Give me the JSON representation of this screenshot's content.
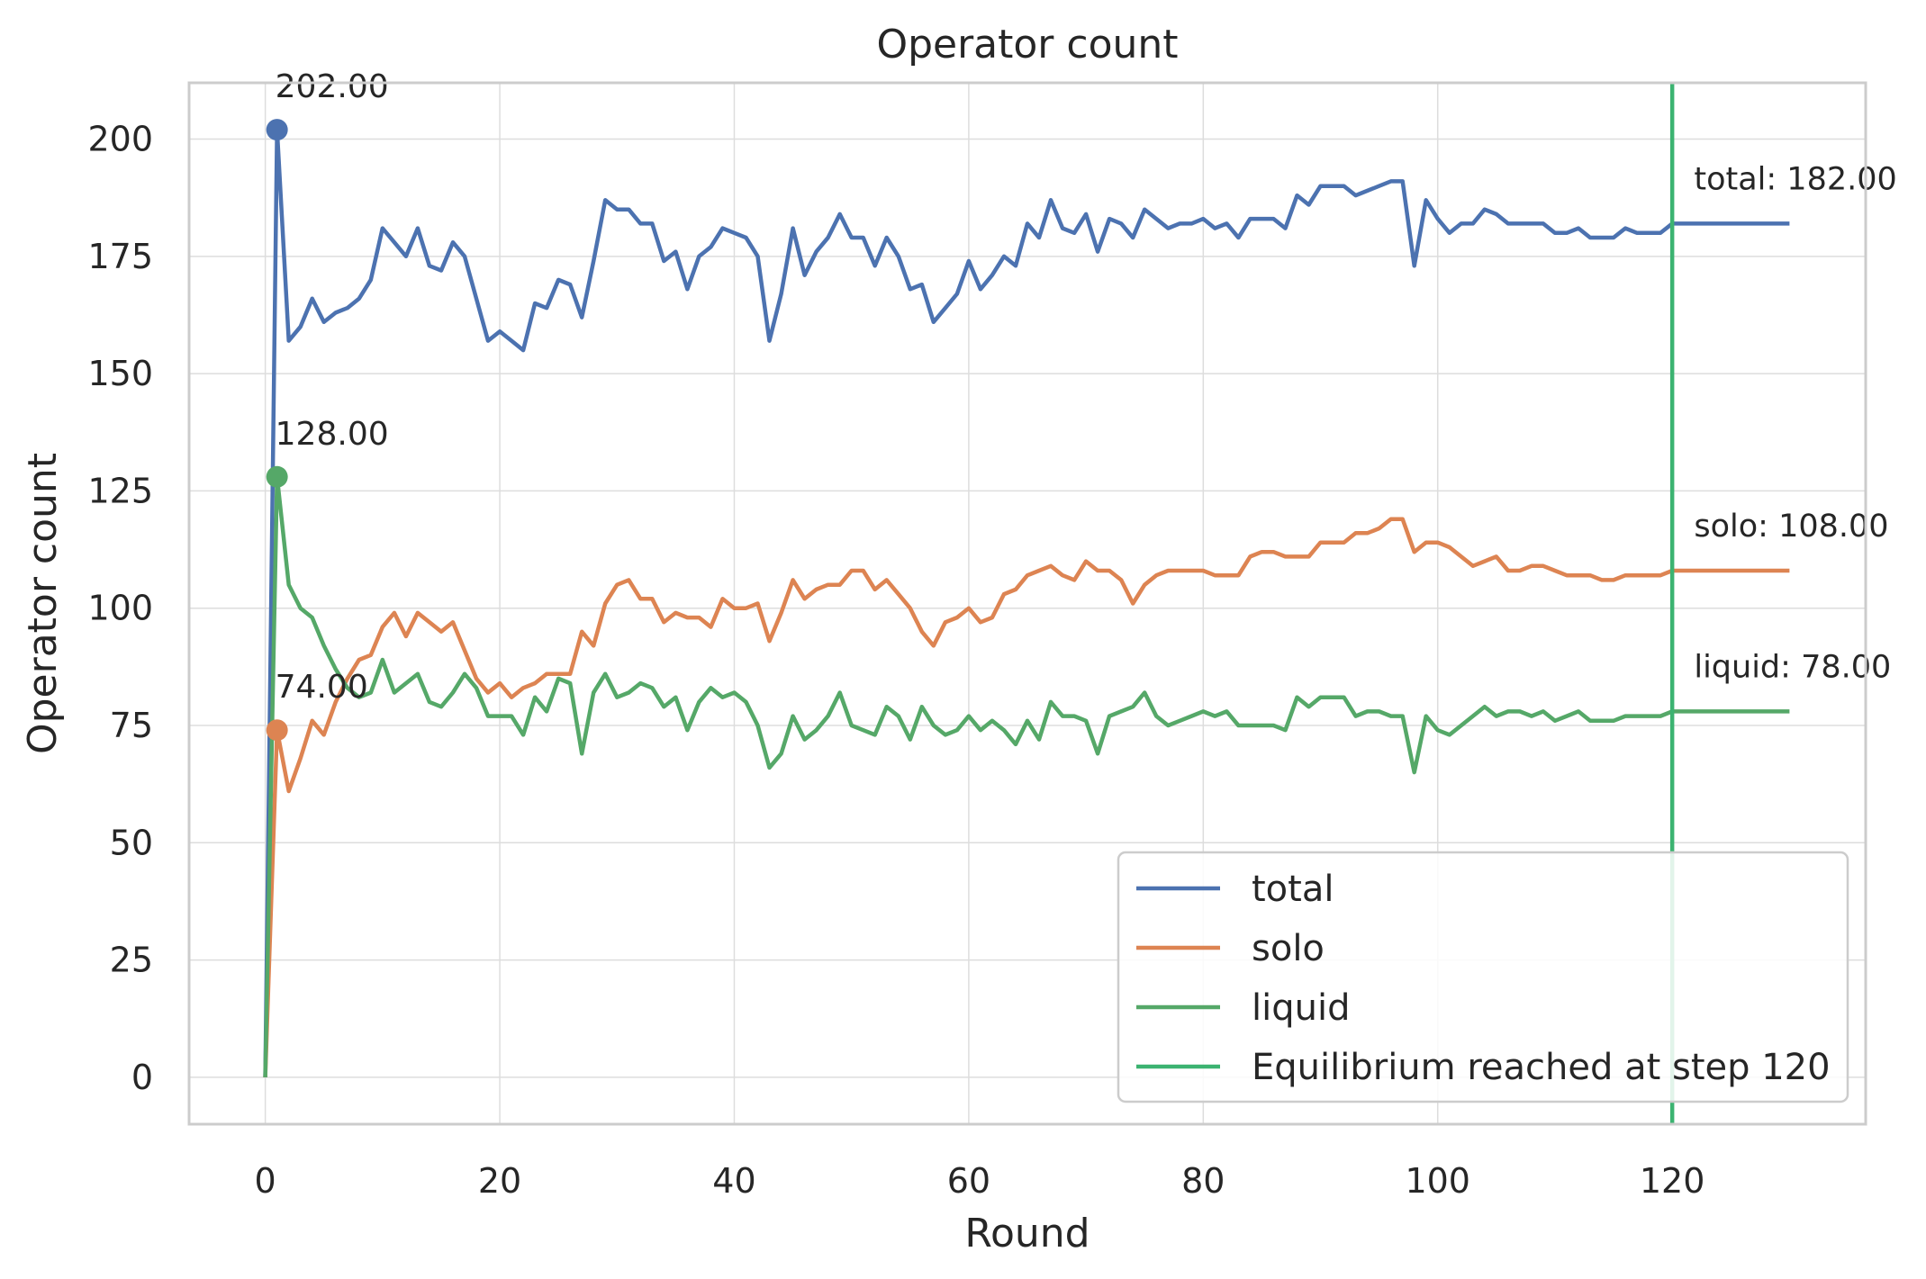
{
  "chart_data": {
    "type": "line",
    "title": "Operator count",
    "xlabel": "Round",
    "ylabel": "Operator count",
    "xlim": [
      -6.5,
      136.5
    ],
    "ylim": [
      -10,
      212
    ],
    "xticks": [
      0,
      20,
      40,
      60,
      80,
      100,
      120
    ],
    "yticks": [
      0,
      25,
      50,
      75,
      100,
      125,
      150,
      175,
      200
    ],
    "grid": true,
    "legend_position": "lower-right",
    "series": [
      {
        "name": "total",
        "color": "#4c72b0",
        "values": [
          0,
          202,
          157,
          160,
          166,
          161,
          163,
          164,
          166,
          170,
          181,
          178,
          175,
          181,
          173,
          172,
          178,
          175,
          166,
          157,
          159,
          157,
          155,
          165,
          164,
          170,
          169,
          162,
          174,
          187,
          185,
          185,
          182,
          182,
          174,
          176,
          168,
          175,
          177,
          181,
          180,
          179,
          175,
          157,
          167,
          181,
          171,
          176,
          179,
          184,
          179,
          179,
          173,
          179,
          175,
          168,
          169,
          161,
          164,
          167,
          174,
          168,
          171,
          175,
          173,
          182,
          179,
          187,
          181,
          180,
          184,
          176,
          183,
          182,
          179,
          185,
          183,
          181,
          182,
          182,
          183,
          181,
          182,
          179,
          183,
          183,
          183,
          181,
          188,
          186,
          190,
          190,
          190,
          188,
          189,
          190,
          191,
          191,
          173,
          187,
          183,
          180,
          182,
          182,
          185,
          184,
          182,
          182,
          182,
          182,
          180,
          180,
          181,
          179,
          179,
          179,
          181,
          180,
          180,
          180,
          182,
          182,
          182,
          182,
          182,
          182,
          182,
          182,
          182,
          182,
          182
        ]
      },
      {
        "name": "solo",
        "color": "#dd8452",
        "values": [
          0,
          74,
          61,
          68,
          76,
          73,
          80,
          85,
          89,
          90,
          96,
          99,
          94,
          99,
          97,
          95,
          97,
          91,
          85,
          82,
          84,
          81,
          83,
          84,
          86,
          86,
          86,
          95,
          92,
          101,
          105,
          106,
          102,
          102,
          97,
          99,
          98,
          98,
          96,
          102,
          100,
          100,
          101,
          93,
          99,
          106,
          102,
          104,
          105,
          105,
          108,
          108,
          104,
          106,
          103,
          100,
          95,
          92,
          97,
          98,
          100,
          97,
          98,
          103,
          104,
          107,
          108,
          109,
          107,
          106,
          110,
          108,
          108,
          106,
          101,
          105,
          107,
          108,
          108,
          108,
          108,
          107,
          107,
          107,
          111,
          112,
          112,
          111,
          111,
          111,
          114,
          114,
          114,
          116,
          116,
          117,
          119,
          119,
          112,
          114,
          114,
          113,
          111,
          109,
          110,
          111,
          108,
          108,
          109,
          109,
          108,
          107,
          107,
          107,
          106,
          106,
          107,
          107,
          107,
          107,
          108,
          108,
          108,
          108,
          108,
          108,
          108,
          108,
          108,
          108,
          108
        ]
      },
      {
        "name": "liquid",
        "color": "#55a868",
        "values": [
          0,
          128,
          105,
          100,
          98,
          92,
          87,
          83,
          81,
          82,
          89,
          82,
          84,
          86,
          80,
          79,
          82,
          86,
          83,
          77,
          77,
          77,
          73,
          81,
          78,
          85,
          84,
          69,
          82,
          86,
          81,
          82,
          84,
          83,
          79,
          81,
          74,
          80,
          83,
          81,
          82,
          80,
          75,
          66,
          69,
          77,
          72,
          74,
          77,
          82,
          75,
          74,
          73,
          79,
          77,
          72,
          79,
          75,
          73,
          74,
          77,
          74,
          76,
          74,
          71,
          76,
          72,
          80,
          77,
          77,
          76,
          69,
          77,
          78,
          79,
          82,
          77,
          75,
          76,
          77,
          78,
          77,
          78,
          75,
          75,
          75,
          75,
          74,
          81,
          79,
          81,
          81,
          81,
          77,
          78,
          78,
          77,
          77,
          65,
          77,
          74,
          73,
          75,
          77,
          79,
          77,
          78,
          78,
          77,
          78,
          76,
          77,
          78,
          76,
          76,
          76,
          77,
          77,
          77,
          77,
          78,
          78,
          78,
          78,
          78,
          78,
          78,
          78,
          78,
          78,
          78
        ]
      }
    ],
    "vline": {
      "x": 120,
      "color": "#3cb371",
      "label": "Equilibrium reached at step 120"
    },
    "peak_labels": [
      {
        "series": "total",
        "x": 1,
        "y": 202,
        "text": "202.00"
      },
      {
        "series": "liquid",
        "x": 1,
        "y": 128,
        "text": "128.00"
      },
      {
        "series": "solo",
        "x": 1,
        "y": 74,
        "text": "74.00"
      }
    ],
    "end_labels": [
      {
        "series": "total",
        "y": 182,
        "text": "total: 182.00"
      },
      {
        "series": "solo",
        "y": 108,
        "text": "solo: 108.00"
      },
      {
        "series": "liquid",
        "y": 78,
        "text": "liquid: 78.00"
      }
    ]
  }
}
